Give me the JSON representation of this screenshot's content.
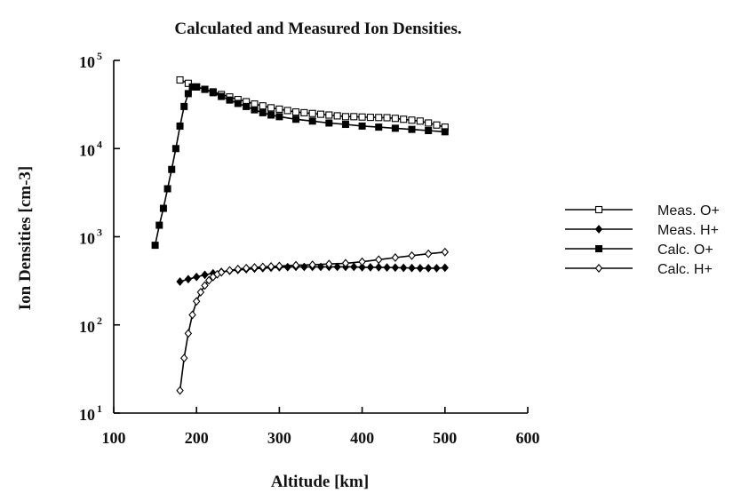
{
  "chart_data": {
    "type": "line",
    "title": "Calculated and Measured Ion Densities.",
    "xlabel": "Altitude [km]",
    "ylabel": "Ion Densities [cm-3]",
    "xlim": [
      100,
      600
    ],
    "ylim": [
      10,
      100000
    ],
    "yscale": "log",
    "grid": false,
    "legend_position": "right",
    "x_ticks": [
      {
        "value": 100,
        "label": "100"
      },
      {
        "value": 200,
        "label": "200"
      },
      {
        "value": 300,
        "label": "300"
      },
      {
        "value": 400,
        "label": "400"
      },
      {
        "value": 500,
        "label": "500"
      },
      {
        "value": 600,
        "label": "600"
      }
    ],
    "y_ticks": [
      {
        "value": 10,
        "base": "10",
        "exp": "1"
      },
      {
        "value": 100,
        "base": "10",
        "exp": "2"
      },
      {
        "value": 1000,
        "base": "10",
        "exp": "3"
      },
      {
        "value": 10000,
        "base": "10",
        "exp": "4"
      },
      {
        "value": 100000,
        "base": "10",
        "exp": "5"
      }
    ],
    "series": [
      {
        "name": "Meas. O+",
        "marker": "open-square",
        "x": [
          180,
          190,
          200,
          210,
          220,
          230,
          240,
          250,
          260,
          270,
          280,
          290,
          300,
          310,
          320,
          330,
          340,
          350,
          360,
          370,
          380,
          390,
          400,
          410,
          420,
          430,
          440,
          450,
          460,
          470,
          480,
          490,
          500
        ],
        "y": [
          60000,
          55000,
          50000,
          47000,
          44000,
          41000,
          38500,
          36000,
          34000,
          32000,
          30500,
          29000,
          28000,
          27000,
          26000,
          25500,
          25000,
          24500,
          24000,
          23500,
          23000,
          23000,
          22800,
          22600,
          22500,
          22400,
          22000,
          21500,
          21000,
          20500,
          19500,
          18500,
          17500
        ]
      },
      {
        "name": "Meas. H+",
        "marker": "filled-diamond",
        "x": [
          180,
          190,
          200,
          210,
          220,
          230,
          240,
          250,
          260,
          270,
          280,
          290,
          300,
          310,
          320,
          330,
          340,
          350,
          360,
          370,
          380,
          390,
          400,
          410,
          420,
          430,
          440,
          450,
          460,
          470,
          480,
          490,
          500
        ],
        "y": [
          310,
          330,
          350,
          370,
          385,
          400,
          410,
          420,
          428,
          435,
          440,
          445,
          450,
          452,
          455,
          455,
          455,
          455,
          455,
          455,
          455,
          455,
          450,
          450,
          450,
          448,
          446,
          444,
          442,
          440,
          440,
          440,
          445
        ]
      },
      {
        "name": "Calc. O+",
        "marker": "filled-square",
        "x": [
          150,
          155,
          160,
          165,
          170,
          175,
          180,
          185,
          190,
          195,
          200,
          210,
          220,
          230,
          240,
          250,
          260,
          270,
          280,
          290,
          300,
          320,
          340,
          360,
          380,
          400,
          420,
          440,
          460,
          480,
          500
        ],
        "y": [
          800,
          1350,
          2100,
          3500,
          5800,
          10000,
          18000,
          30000,
          42000,
          50000,
          50000,
          47000,
          43000,
          39000,
          35500,
          32500,
          30000,
          27500,
          25500,
          24000,
          23000,
          21500,
          20500,
          19500,
          18800,
          18000,
          17500,
          17000,
          16500,
          16000,
          15500
        ]
      },
      {
        "name": "Calc. H+",
        "marker": "open-diamond",
        "x": [
          180,
          185,
          190,
          195,
          200,
          205,
          210,
          215,
          220,
          225,
          230,
          240,
          250,
          260,
          270,
          280,
          290,
          300,
          320,
          340,
          360,
          380,
          400,
          420,
          440,
          460,
          480,
          500
        ],
        "y": [
          18,
          42,
          80,
          130,
          185,
          235,
          280,
          320,
          350,
          375,
          395,
          415,
          430,
          440,
          448,
          455,
          460,
          465,
          475,
          480,
          490,
          500,
          520,
          550,
          580,
          610,
          640,
          670
        ]
      }
    ]
  }
}
